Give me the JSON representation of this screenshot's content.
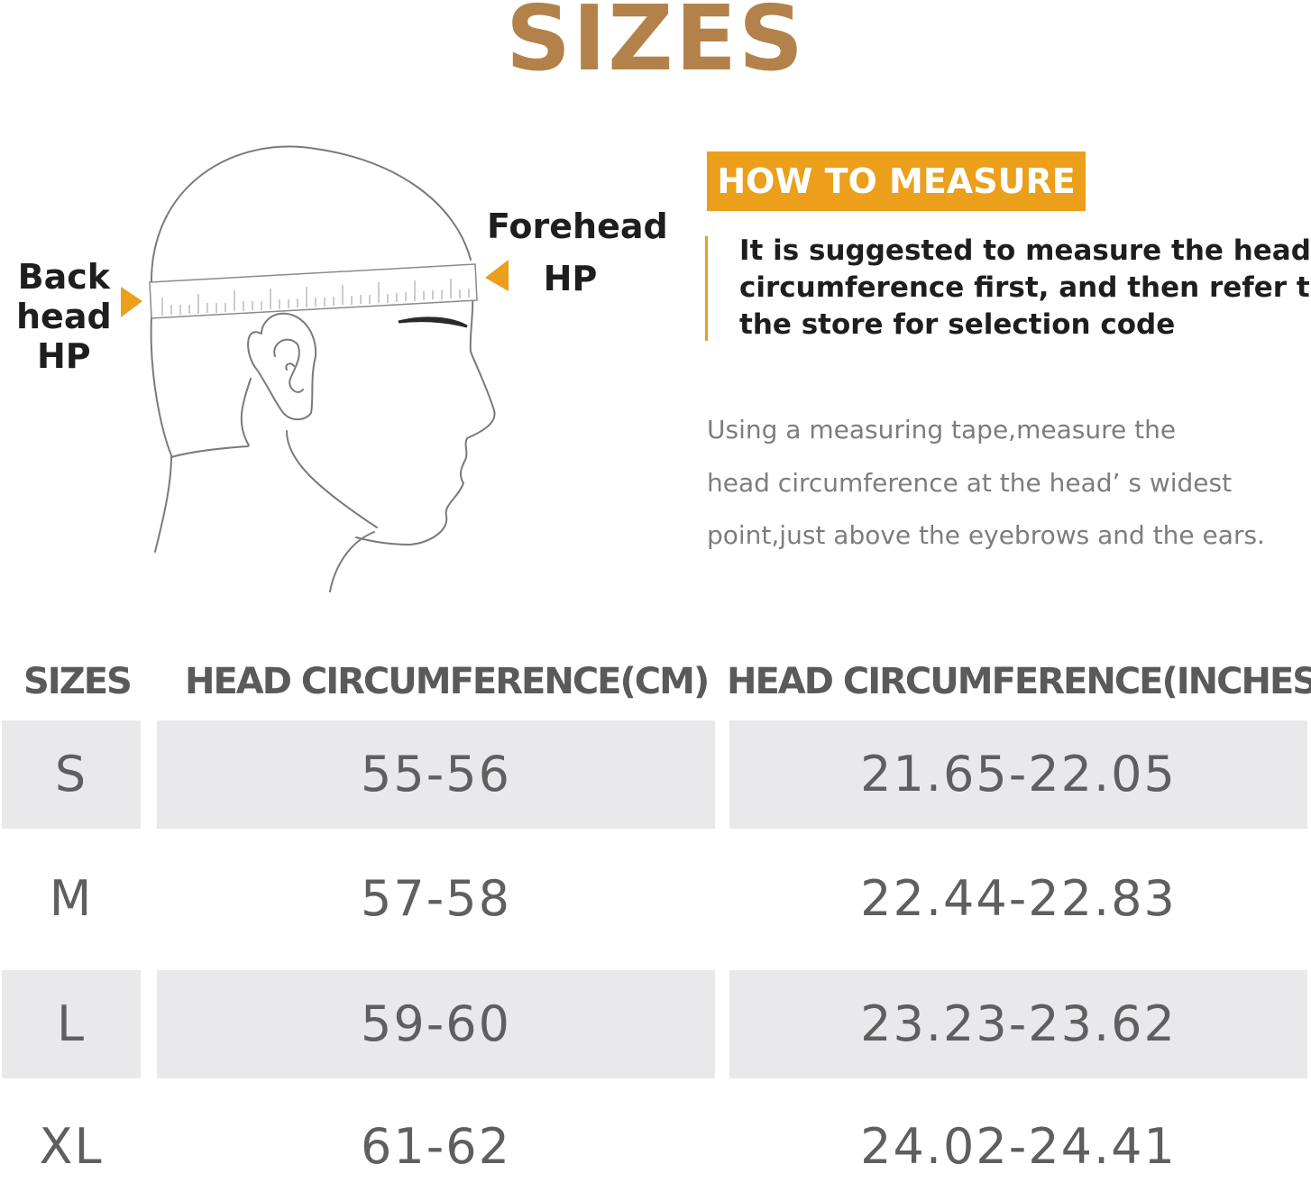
{
  "title": "SIZES",
  "labels": {
    "back": [
      "Back",
      "head",
      "HP"
    ],
    "forehead": [
      "Forehead",
      "HP"
    ]
  },
  "how_to": {
    "badge": "HOW TO MEASURE",
    "suggestion": [
      "It is suggested to measure the head",
      "circumference first, and then refer to",
      "the store for selection code"
    ],
    "description": [
      "Using a measuring tape,measure the",
      "head circumference at the head’ s widest",
      "point,just above the eyebrows and the ears."
    ]
  },
  "table": {
    "headers": [
      "SIZES",
      "HEAD CIRCUMFERENCE(CM)",
      "HEAD CIRCUMFERENCE(INCHES)"
    ],
    "rows": [
      {
        "size": "S",
        "cm": "55-56",
        "inches": "21.65-22.05"
      },
      {
        "size": "M",
        "cm": "57-58",
        "inches": "22.44-22.83"
      },
      {
        "size": "L",
        "cm": "59-60",
        "inches": "23.23-23.62"
      },
      {
        "size": "XL",
        "cm": "61-62",
        "inches": "24.02-24.41"
      }
    ]
  },
  "colors": {
    "title": "#b3824a",
    "accent": "#ec9f1a",
    "row_shade": "#e9e9ec",
    "body_text": "#5f5f5f"
  }
}
